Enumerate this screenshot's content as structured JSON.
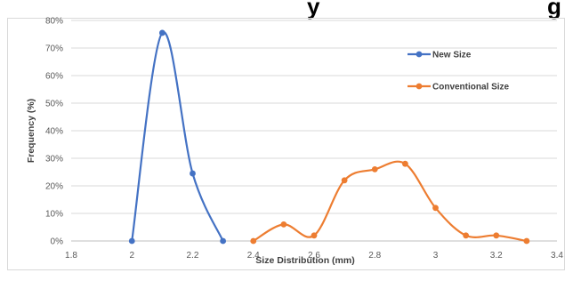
{
  "chart_data": {
    "type": "line",
    "title_fragment": "…y                                   …g",
    "xlabel": "Size Distribution  (mm)",
    "ylabel": "Frequency (%)",
    "xlim": [
      1.8,
      3.4
    ],
    "ylim": [
      0,
      80
    ],
    "x_ticks": [
      "1.8",
      "2",
      "2.2",
      "2.4",
      "2.6",
      "2.8",
      "3",
      "3.2",
      "3.4"
    ],
    "y_ticks": [
      "0%",
      "10%",
      "20%",
      "30%",
      "40%",
      "50%",
      "60%",
      "70%",
      "80%"
    ],
    "grid": true,
    "smooth": true,
    "legend_position": "right",
    "series": [
      {
        "name": "New Size",
        "color": "#4472C4",
        "x": [
          2.0,
          2.1,
          2.2,
          2.3
        ],
        "y": [
          0,
          75.5,
          24.5,
          0
        ]
      },
      {
        "name": "Conventional Size",
        "color": "#ED7D31",
        "x": [
          2.4,
          2.5,
          2.6,
          2.7,
          2.8,
          2.9,
          3.0,
          3.1,
          3.2,
          3.3
        ],
        "y": [
          0,
          6,
          2,
          22,
          26,
          28,
          12,
          2,
          2,
          0
        ]
      }
    ]
  }
}
